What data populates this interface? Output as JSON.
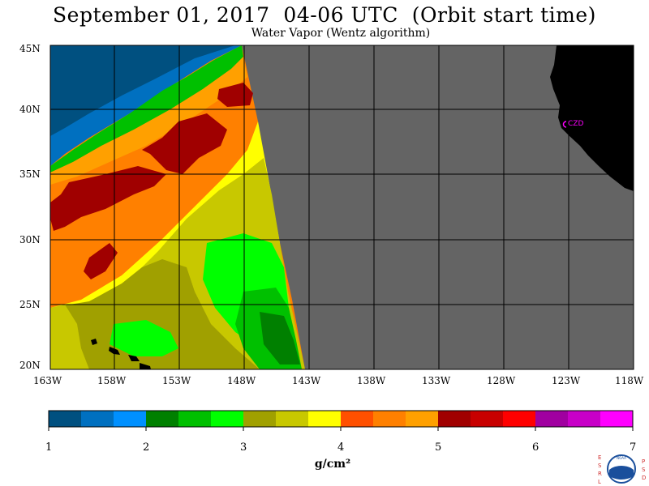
{
  "header": {
    "title": "September 01, 2017  04-06 UTC  (Orbit start time)",
    "subtitle": "Water Vapor (Wentz algorithm)"
  },
  "map": {
    "lon_labels": [
      "163W",
      "158W",
      "153W",
      "148W",
      "143W",
      "138W",
      "133W",
      "128W",
      "123W",
      "118W"
    ],
    "lat_labels": [
      "45N",
      "40N",
      "35N",
      "30N",
      "25N",
      "20N"
    ],
    "station_label": "CZD",
    "colors": {
      "land": "#000000",
      "no_data": "#646464",
      "station": "#ff00ff"
    }
  },
  "colorbar": {
    "ticks": [
      "1",
      "2",
      "3",
      "4",
      "5",
      "6",
      "7"
    ],
    "unit": "g/cm²",
    "colors": [
      "#005080",
      "#0070c0",
      "#0090ff",
      "#008000",
      "#00c000",
      "#00ff00",
      "#a0a000",
      "#c8c800",
      "#ffff00",
      "#ff5000",
      "#ff8000",
      "#ffa000",
      "#a00000",
      "#c80000",
      "#ff0000",
      "#a000a0",
      "#c800c8",
      "#ff00ff"
    ]
  },
  "logo": {
    "left_letters": "ESRL",
    "right_letters": "PSD",
    "center_text": "NOAA"
  }
}
